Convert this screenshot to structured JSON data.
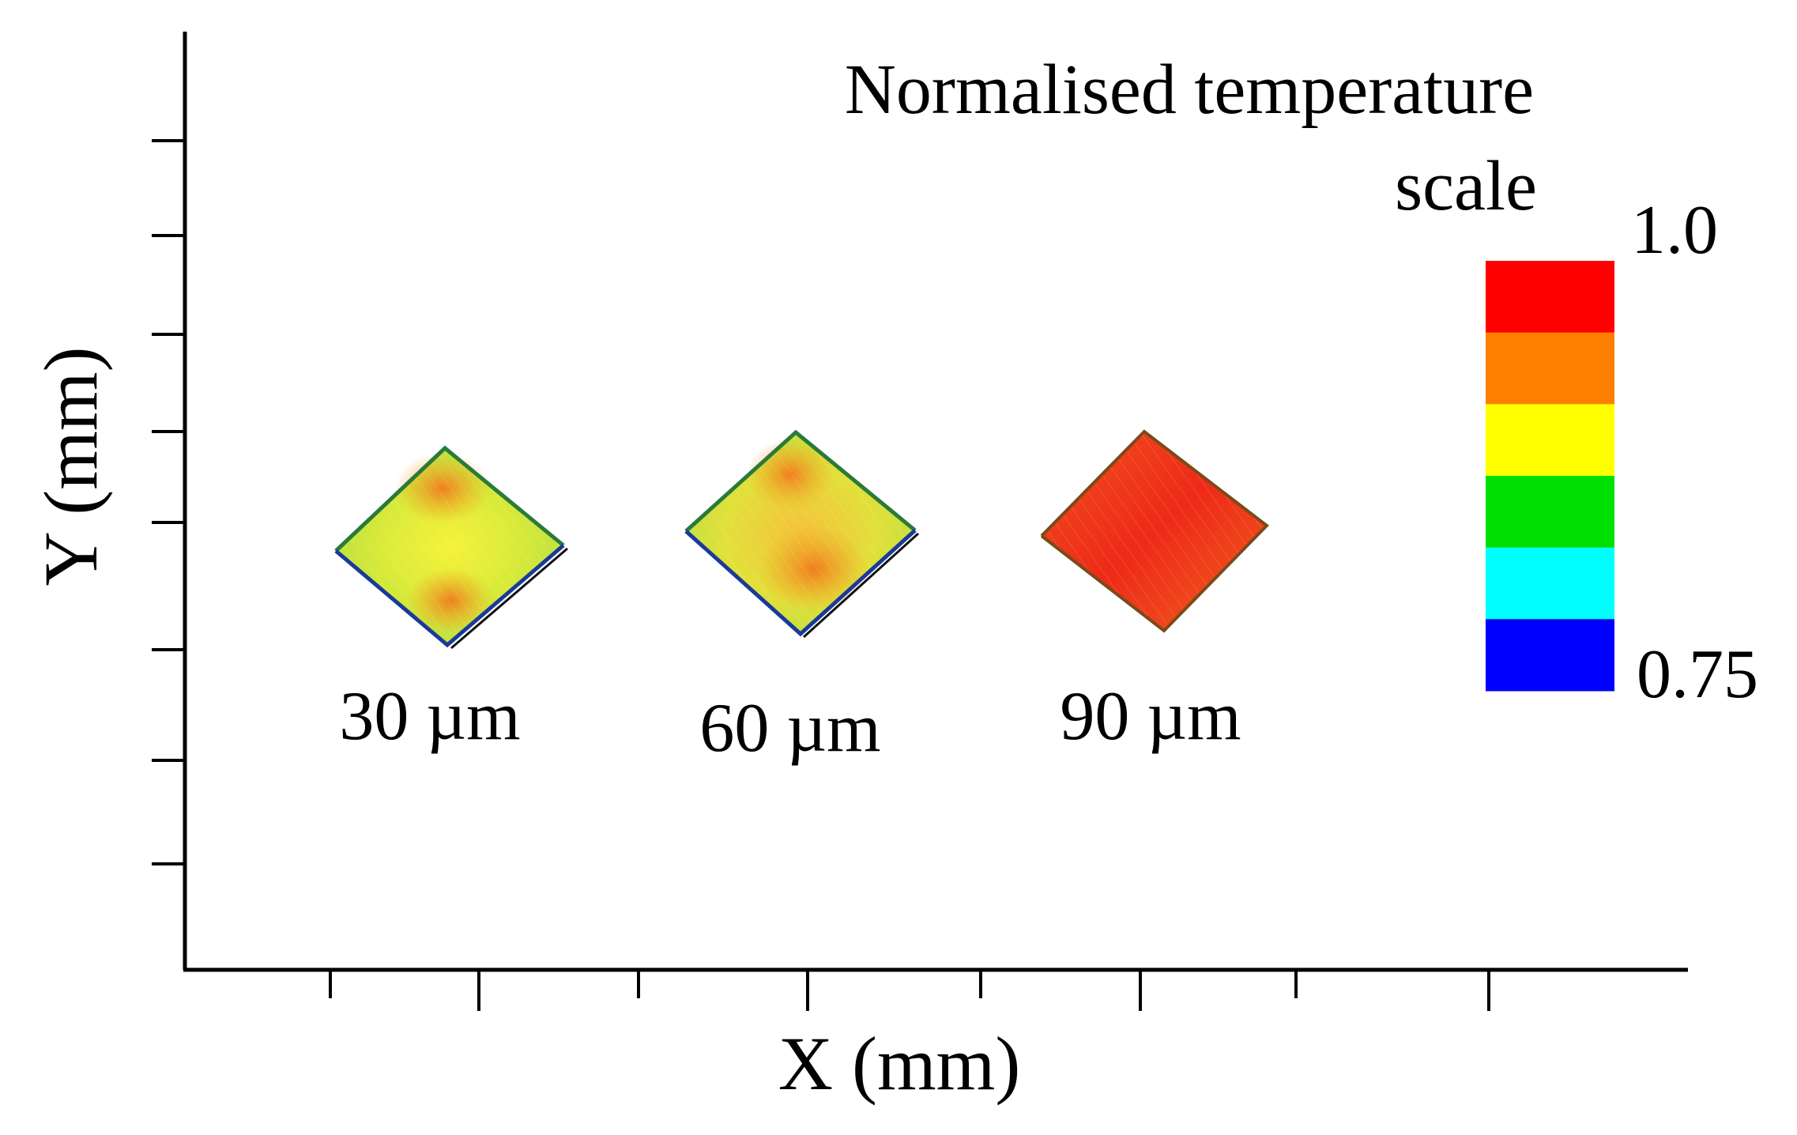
{
  "chart_data": {
    "type": "heatmap",
    "title": "Normalised temperature scale",
    "title_lines": [
      "Normalised temperature",
      "scale"
    ],
    "xlabel": "X (mm)",
    "ylabel": "Y (mm)",
    "grid": false,
    "x_tick_labels": [],
    "y_tick_labels": [],
    "samples": [
      {
        "label": "30 µm",
        "thickness_um": 30,
        "dominant_colors": [
          "#f5f23a",
          "#f0a020"
        ],
        "hot_spots": "top and bottom corners",
        "edge_colors": [
          "#3a9a3a",
          "#2040c0"
        ]
      },
      {
        "label": "60 µm",
        "thickness_um": 60,
        "dominant_colors": [
          "#f3d23a",
          "#f0a020"
        ],
        "hot_spots": "top corner and lower half",
        "edge_colors": [
          "#3a9a3a",
          "#2040c0"
        ]
      },
      {
        "label": "90 µm",
        "thickness_um": 90,
        "dominant_colors": [
          "#ee2a18",
          "#f06a20"
        ],
        "hot_spots": "entire surface",
        "edge_colors": [
          "#8a5a20"
        ]
      }
    ],
    "colorbar": {
      "max_label": "1.0",
      "min_label": "0.75",
      "min": 0.75,
      "max": 1.0,
      "bands_top_to_bottom": [
        "#ff0000",
        "#ff8000",
        "#ffff00",
        "#00e000",
        "#00ffff",
        "#0000ff"
      ]
    }
  }
}
